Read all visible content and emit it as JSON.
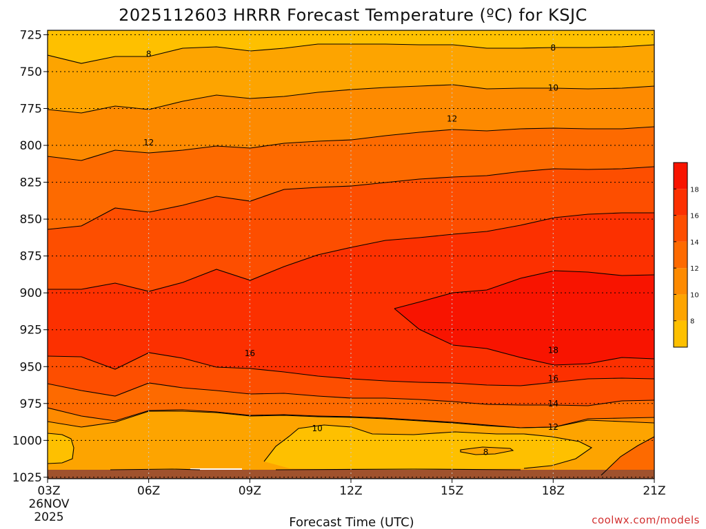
{
  "chart_data": {
    "type": "contour",
    "title": "2025112603 HRRR Forecast Temperature (ºC) for KSJC",
    "xlabel": "Forecast Time (UTC)",
    "x_tick_labels": [
      "03Z",
      "06Z",
      "09Z",
      "12Z",
      "15Z",
      "18Z",
      "21Z"
    ],
    "x_date_label": [
      "26NOV",
      "2025"
    ],
    "x_hours": [
      3,
      6,
      9,
      12,
      15,
      18,
      21
    ],
    "y_tick_labels": [
      "725",
      "750",
      "775",
      "800",
      "825",
      "850",
      "875",
      "900",
      "925",
      "950",
      "975",
      "1000",
      "1025"
    ],
    "y_values": [
      725,
      750,
      775,
      800,
      825,
      850,
      875,
      900,
      925,
      950,
      975,
      1000,
      1025
    ],
    "ylim": [
      722,
      1026
    ],
    "xlim": [
      3,
      21
    ],
    "grid": true,
    "credit": "coolwx.com/models",
    "colorbar": {
      "labels": [
        "8",
        "10",
        "12",
        "14",
        "16",
        "18"
      ],
      "colors": [
        "#fec000",
        "#fda400",
        "#fd8a00",
        "#fd6a00",
        "#fd4e00",
        "#fc3000",
        "#f81400"
      ]
    },
    "contour_labels": [
      {
        "text": "8",
        "hour": 6,
        "p": 738
      },
      {
        "text": "8",
        "hour": 18,
        "p": 734
      },
      {
        "text": "10",
        "hour": 18,
        "p": 761
      },
      {
        "text": "12",
        "hour": 6,
        "p": 798
      },
      {
        "text": "12",
        "hour": 15,
        "p": 782
      },
      {
        "text": "16",
        "hour": 9,
        "p": 941
      },
      {
        "text": "18",
        "hour": 18,
        "p": 939
      },
      {
        "text": "16",
        "hour": 18,
        "p": 958
      },
      {
        "text": "14",
        "hour": 18,
        "p": 975
      },
      {
        "text": "12",
        "hour": 18,
        "p": 991
      },
      {
        "text": "10",
        "hour": 11,
        "p": 992
      },
      {
        "text": "8",
        "hour": 16,
        "p": 1008
      }
    ]
  }
}
